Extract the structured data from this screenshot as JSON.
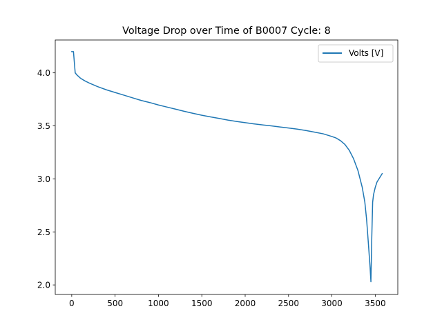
{
  "chart_data": {
    "type": "line",
    "title": "Voltage Drop over Time of B0007 Cycle: 8",
    "xlabel": "",
    "ylabel": "",
    "xlim": [
      -190,
      3760
    ],
    "ylim": [
      1.91,
      4.31
    ],
    "x_ticks": [
      0,
      500,
      1000,
      1500,
      2000,
      2500,
      3000,
      3500
    ],
    "x_tick_labels": [
      "0",
      "500",
      "1000",
      "1500",
      "2000",
      "2500",
      "3000",
      "3500"
    ],
    "y_ticks": [
      2.0,
      2.5,
      3.0,
      3.5,
      4.0
    ],
    "y_tick_labels": [
      "2.0",
      "2.5",
      "3.0",
      "3.5",
      "4.0"
    ],
    "grid": false,
    "legend_position": "top-right",
    "series": [
      {
        "name": "Volts [V]",
        "color": "#1f77b4",
        "x": [
          0,
          20,
          30,
          40,
          60,
          100,
          150,
          200,
          300,
          400,
          500,
          600,
          700,
          800,
          900,
          1000,
          1100,
          1200,
          1300,
          1400,
          1500,
          1600,
          1700,
          1800,
          1900,
          2000,
          2100,
          2200,
          2300,
          2400,
          2500,
          2600,
          2700,
          2800,
          2900,
          3000,
          3050,
          3100,
          3150,
          3200,
          3250,
          3300,
          3350,
          3380,
          3400,
          3420,
          3440,
          3450,
          3460,
          3470,
          3480,
          3500,
          3520,
          3550,
          3580
        ],
        "values": [
          4.2,
          4.2,
          4.1,
          4.0,
          3.98,
          3.95,
          3.925,
          3.905,
          3.87,
          3.84,
          3.815,
          3.79,
          3.765,
          3.74,
          3.72,
          3.697,
          3.677,
          3.657,
          3.637,
          3.618,
          3.6,
          3.585,
          3.57,
          3.555,
          3.542,
          3.53,
          3.519,
          3.509,
          3.5,
          3.49,
          3.48,
          3.469,
          3.456,
          3.441,
          3.425,
          3.4,
          3.385,
          3.36,
          3.325,
          3.27,
          3.19,
          3.08,
          2.92,
          2.78,
          2.62,
          2.4,
          2.17,
          2.03,
          2.45,
          2.78,
          2.85,
          2.92,
          2.97,
          3.01,
          3.05
        ]
      }
    ]
  }
}
